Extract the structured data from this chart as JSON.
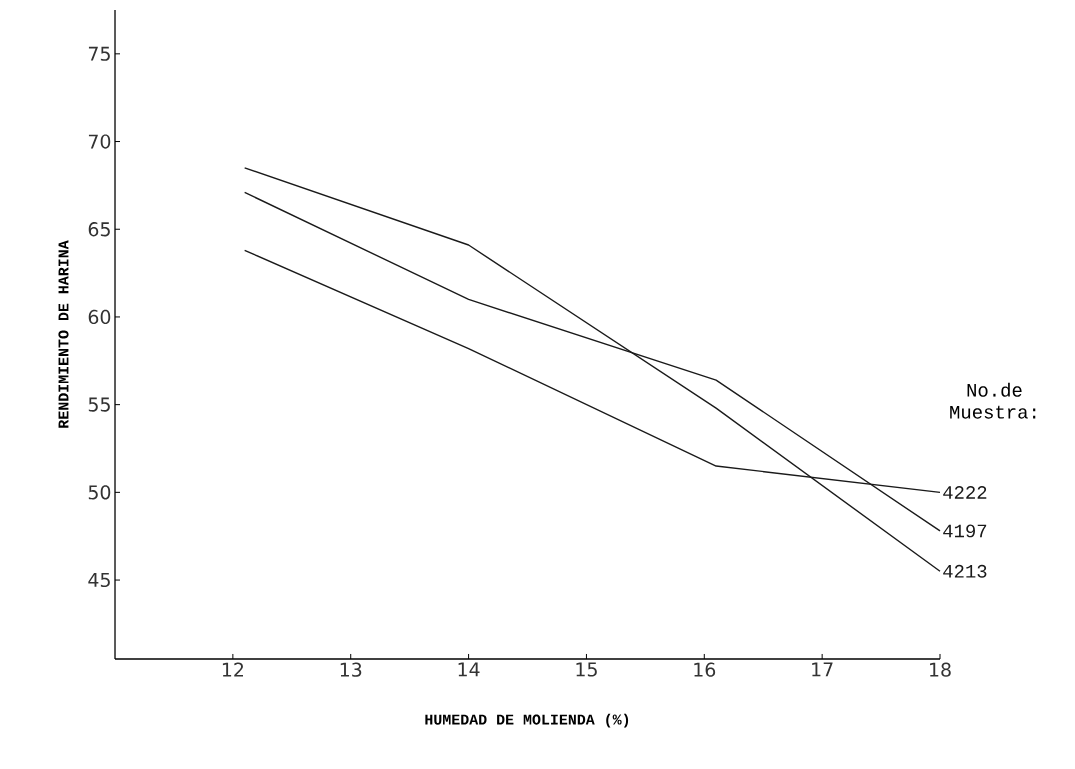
{
  "chart_data": {
    "type": "line",
    "xlabel": "HUMEDAD DE MOLIENDA (%)",
    "ylabel": "RENDIMIENTO DE HARINA",
    "legend_title": "No.de Muestra:",
    "x": [
      12.1,
      14,
      16.1,
      18
    ],
    "series": [
      {
        "name": "4222",
        "color": "#1a1a1a",
        "values": [
          63.8,
          58.2,
          51.5,
          50.0
        ]
      },
      {
        "name": "4197",
        "color": "#1a1a1a",
        "values": [
          67.1,
          61.0,
          56.4,
          47.8
        ]
      },
      {
        "name": "4213",
        "color": "#1a1a1a",
        "values": [
          68.5,
          64.1,
          54.8,
          45.5
        ]
      }
    ],
    "xlim": [
      11,
      18
    ],
    "ylim": [
      40.5,
      77.5
    ],
    "xticks": [
      12,
      13,
      14,
      15,
      16,
      17,
      18
    ],
    "yticks": [
      45,
      50,
      55,
      60,
      65,
      70,
      75
    ]
  }
}
